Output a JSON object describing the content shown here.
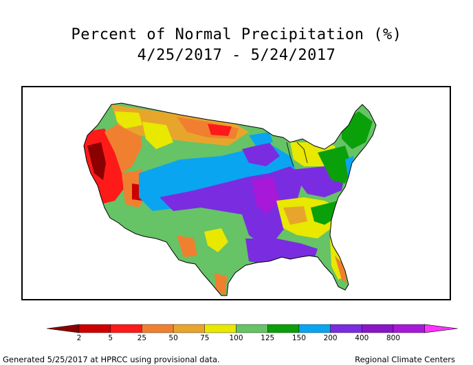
{
  "title_line1": "Percent of Normal Precipitation (%)",
  "title_line2": "4/25/2017 - 5/24/2017",
  "footer_left": "Generated 5/25/2017 at HPRCC using provisional data.",
  "footer_right": "Regional Climate Centers",
  "legend": {
    "colors": [
      "#8b0000",
      "#cc0000",
      "#ff1a1a",
      "#f08030",
      "#e8a52c",
      "#e8e800",
      "#66c366",
      "#0aa00a",
      "#0aa5f0",
      "#7a2de0",
      "#8a16c8",
      "#a818d8",
      "#ff33ff"
    ],
    "labels": [
      "2",
      "5",
      "25",
      "50",
      "75",
      "100",
      "125",
      "150",
      "200",
      "400",
      "800"
    ]
  },
  "map": {
    "region": "Contiguous United States",
    "palette": {
      "dry_dark": "#8b0000",
      "dry_red": "#ff1a1a",
      "orange": "#f08030",
      "gold": "#e8a52c",
      "yellow": "#e8e800",
      "light_green": "#66c366",
      "green": "#0aa00a",
      "blue": "#0aa5f0",
      "purple": "#7a2de0",
      "violet": "#a818d8"
    }
  }
}
